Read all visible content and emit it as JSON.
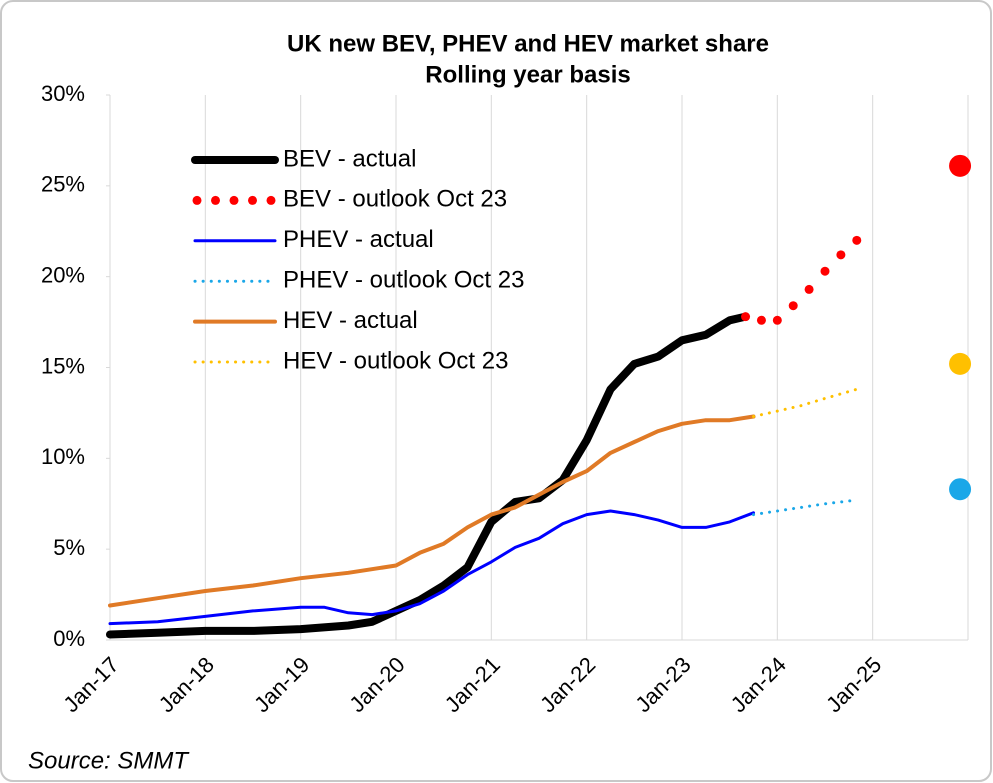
{
  "chart_data": {
    "type": "line",
    "title": "UK new BEV, PHEV and HEV market share",
    "subtitle": "Rolling year basis",
    "source": "Source: SMMT",
    "xlim": [
      "2017-01",
      "2026-01"
    ],
    "xticks": [
      {
        "value": "2017-01",
        "label": "Jan-17"
      },
      {
        "value": "2018-01",
        "label": "Jan-18"
      },
      {
        "value": "2019-01",
        "label": "Jan-19"
      },
      {
        "value": "2020-01",
        "label": "Jan-20"
      },
      {
        "value": "2021-01",
        "label": "Jan-21"
      },
      {
        "value": "2022-01",
        "label": "Jan-22"
      },
      {
        "value": "2023-01",
        "label": "Jan-23"
      },
      {
        "value": "2024-01",
        "label": "Jan-24"
      },
      {
        "value": "2025-01",
        "label": "Jan-25"
      }
    ],
    "ylim": [
      0,
      30
    ],
    "yticks": [
      {
        "value": 0,
        "label": "0%"
      },
      {
        "value": 5,
        "label": "5%"
      },
      {
        "value": 10,
        "label": "10%"
      },
      {
        "value": 15,
        "label": "15%"
      },
      {
        "value": 20,
        "label": "20%"
      },
      {
        "value": 25,
        "label": "25%"
      },
      {
        "value": 30,
        "label": "30%"
      }
    ],
    "grid": "x",
    "legend": "upper left",
    "series": [
      {
        "name": "BEV - actual",
        "color": "#000000",
        "style": "solid",
        "x": [
          "2017-01",
          "2017-07",
          "2018-01",
          "2018-07",
          "2019-01",
          "2019-07",
          "2019-10",
          "2020-01",
          "2020-04",
          "2020-07",
          "2020-10",
          "2021-01",
          "2021-04",
          "2021-07",
          "2021-10",
          "2022-01",
          "2022-04",
          "2022-07",
          "2022-10",
          "2023-01",
          "2023-04",
          "2023-07",
          "2023-09"
        ],
        "values": [
          0.3,
          0.4,
          0.5,
          0.5,
          0.6,
          0.8,
          1.0,
          1.6,
          2.2,
          3.0,
          4.0,
          6.5,
          7.6,
          7.8,
          8.8,
          11.0,
          13.8,
          15.2,
          15.6,
          16.5,
          16.8,
          17.6,
          17.8
        ]
      },
      {
        "name": "BEV - outlook Oct 23",
        "color": "#ff0000",
        "style": "dots",
        "x": [
          "2023-09",
          "2023-11",
          "2024-01",
          "2024-03",
          "2024-05",
          "2024-07",
          "2024-09",
          "2024-11"
        ],
        "values": [
          17.8,
          17.6,
          17.6,
          18.4,
          19.3,
          20.3,
          21.2,
          22.0
        ]
      },
      {
        "name": "PHEV - actual",
        "color": "#0000ff",
        "style": "solid",
        "x": [
          "2017-01",
          "2017-07",
          "2018-01",
          "2018-07",
          "2019-01",
          "2019-04",
          "2019-07",
          "2019-10",
          "2020-01",
          "2020-04",
          "2020-07",
          "2020-10",
          "2021-01",
          "2021-04",
          "2021-07",
          "2021-10",
          "2022-01",
          "2022-04",
          "2022-07",
          "2022-10",
          "2023-01",
          "2023-04",
          "2023-07",
          "2023-10"
        ],
        "values": [
          0.9,
          1.0,
          1.3,
          1.6,
          1.8,
          1.8,
          1.5,
          1.4,
          1.6,
          2.0,
          2.7,
          3.6,
          4.3,
          5.1,
          5.6,
          6.4,
          6.9,
          7.1,
          6.9,
          6.6,
          6.2,
          6.2,
          6.5,
          7.0
        ]
      },
      {
        "name": "PHEV - outlook Oct 23",
        "color": "#1aa7e8",
        "style": "dotted",
        "x": [
          "2023-10",
          "2024-01",
          "2024-04",
          "2024-07",
          "2024-11"
        ],
        "values": [
          6.9,
          7.1,
          7.3,
          7.5,
          7.7
        ]
      },
      {
        "name": "HEV - actual",
        "color": "#e07a26",
        "style": "solid",
        "x": [
          "2017-01",
          "2017-07",
          "2018-01",
          "2018-07",
          "2019-01",
          "2019-07",
          "2020-01",
          "2020-04",
          "2020-07",
          "2020-10",
          "2021-01",
          "2021-04",
          "2021-07",
          "2021-10",
          "2022-01",
          "2022-04",
          "2022-07",
          "2022-10",
          "2023-01",
          "2023-04",
          "2023-07",
          "2023-10"
        ],
        "values": [
          1.9,
          2.3,
          2.7,
          3.0,
          3.4,
          3.7,
          4.1,
          4.8,
          5.3,
          6.2,
          6.9,
          7.3,
          8.0,
          8.7,
          9.3,
          10.3,
          10.9,
          11.5,
          11.9,
          12.1,
          12.1,
          12.3
        ]
      },
      {
        "name": "HEV - outlook Oct 23",
        "color": "#ffc000",
        "style": "dotted",
        "x": [
          "2023-10",
          "2024-01",
          "2024-04",
          "2024-07",
          "2024-11"
        ],
        "values": [
          12.3,
          12.6,
          12.9,
          13.3,
          13.8
        ]
      }
    ],
    "target_points": [
      {
        "x": "2025-12",
        "value": 26.1,
        "color": "#ff0000"
      },
      {
        "x": "2025-12",
        "value": 15.2,
        "color": "#ffc000"
      },
      {
        "x": "2025-12",
        "value": 8.3,
        "color": "#1aa7e8"
      }
    ]
  }
}
